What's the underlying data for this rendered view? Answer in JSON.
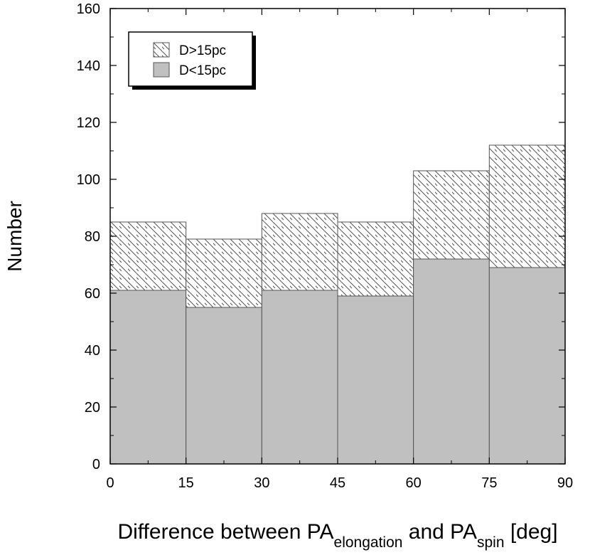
{
  "chart_data": {
    "type": "bar",
    "stacked": true,
    "bin_edges": [
      0,
      15,
      30,
      45,
      60,
      75,
      90
    ],
    "series": [
      {
        "name": "D<15pc",
        "values": [
          61,
          55,
          61,
          59,
          72,
          69
        ],
        "fill": "solid",
        "color": "#c0c0c0"
      },
      {
        "name": "D>15pc",
        "values": [
          24,
          24,
          27,
          26,
          31,
          43
        ],
        "fill": "hatched",
        "color": "#555555"
      }
    ],
    "totals": [
      85,
      79,
      88,
      85,
      103,
      112
    ],
    "x_ticks": [
      "0",
      "15",
      "30",
      "45",
      "60",
      "75",
      "90"
    ],
    "y_ticks": [
      "0",
      "20",
      "40",
      "60",
      "80",
      "100",
      "120",
      "140",
      "160"
    ],
    "xlim": [
      0,
      90
    ],
    "ylim": [
      0,
      160
    ],
    "ylabel": "Number",
    "xlabel": {
      "parts": [
        {
          "text": "Difference between PA",
          "sub": false
        },
        {
          "text": "elongation",
          "sub": true
        },
        {
          "text": " and PA",
          "sub": false
        },
        {
          "text": "spin",
          "sub": true
        },
        {
          "text": " [deg]",
          "sub": false
        }
      ]
    },
    "legend": {
      "position": "top-left",
      "entries": [
        {
          "label": "D>15pc",
          "fill": "hatched"
        },
        {
          "label": "D<15pc",
          "fill": "solid"
        }
      ]
    },
    "grid": false
  }
}
